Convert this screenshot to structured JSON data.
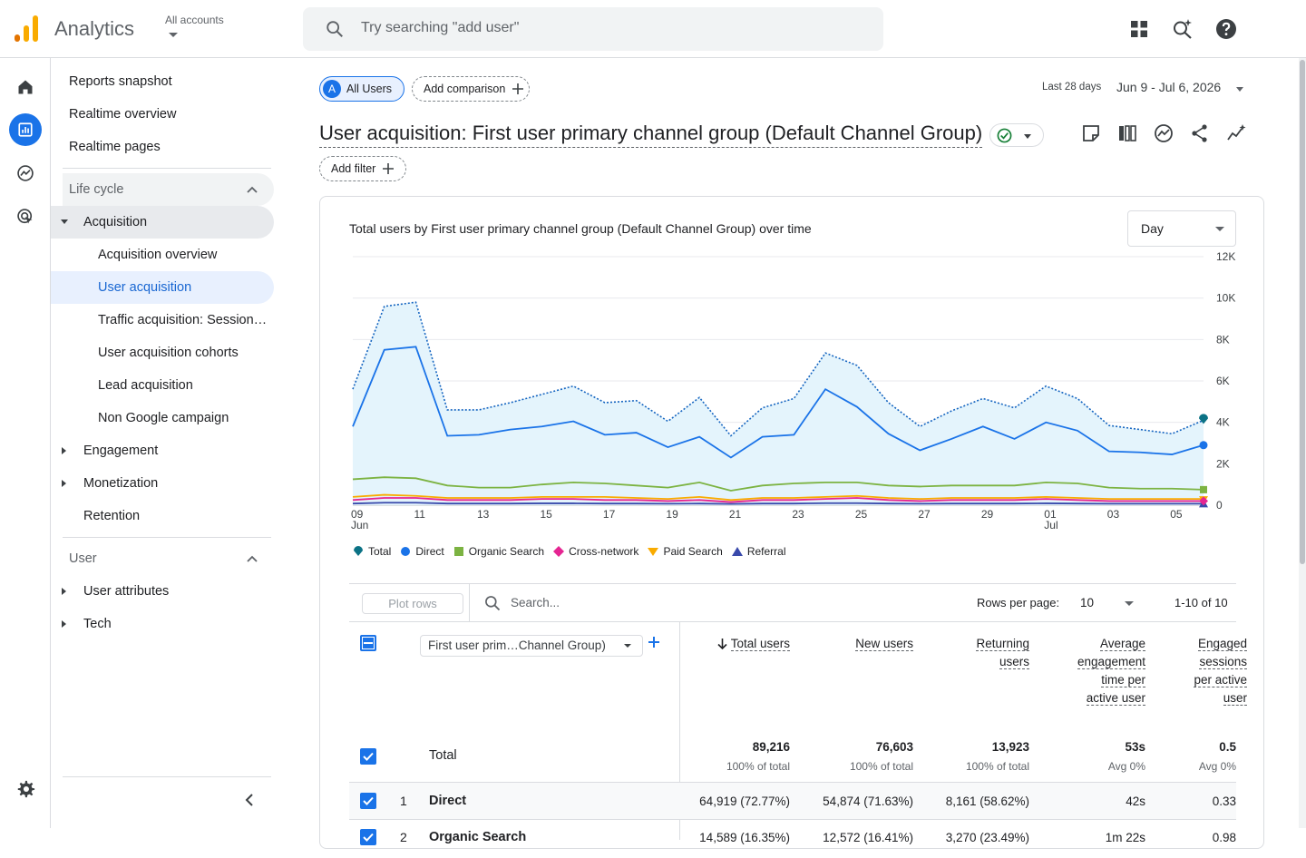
{
  "topbar": {
    "app_title": "Analytics",
    "accounts_label": "All accounts",
    "search_placeholder": "Try searching \"add user\""
  },
  "rail": [
    "home-icon",
    "reports-icon",
    "explore-icon",
    "advertising-icon"
  ],
  "sidenav": {
    "items": [
      {
        "label": "Reports snapshot"
      },
      {
        "label": "Realtime overview"
      },
      {
        "label": "Realtime pages"
      }
    ],
    "lifecycle": {
      "label": "Life cycle",
      "acquisition": {
        "label": "Acquisition",
        "children": [
          "Acquisition overview",
          "User acquisition",
          "Traffic acquisition: Session…",
          "User acquisition cohorts",
          "Lead acquisition",
          "Non Google campaign"
        ]
      },
      "engagement": "Engagement",
      "monetization": "Monetization",
      "retention": "Retention"
    },
    "user": {
      "label": "User",
      "user_attributes": "User attributes",
      "tech": "Tech"
    }
  },
  "header": {
    "all_users_chip": "All Users",
    "all_users_letter": "A",
    "add_comparison": "Add comparison",
    "date_label": "Last 28 days",
    "date_range": "Jun 9 - Jul 6, 2026",
    "report_title": "User acquisition: First user primary channel group (Default Channel Group)",
    "add_filter": "Add filter"
  },
  "card": {
    "chart_title": "Total users by First user primary channel group (Default Channel Group) over time",
    "granularity": "Day"
  },
  "chart_data": {
    "type": "line",
    "y_ticks": [
      "12K",
      "10K",
      "8K",
      "6K",
      "4K",
      "2K",
      "0"
    ],
    "x_ticks": [
      {
        "day": "09",
        "month": "Jun"
      },
      {
        "day": "11",
        "month": ""
      },
      {
        "day": "13",
        "month": ""
      },
      {
        "day": "15",
        "month": ""
      },
      {
        "day": "17",
        "month": ""
      },
      {
        "day": "19",
        "month": ""
      },
      {
        "day": "21",
        "month": ""
      },
      {
        "day": "23",
        "month": ""
      },
      {
        "day": "25",
        "month": ""
      },
      {
        "day": "27",
        "month": ""
      },
      {
        "day": "29",
        "month": ""
      },
      {
        "day": "01",
        "month": "Jul"
      },
      {
        "day": "03",
        "month": ""
      },
      {
        "day": "05",
        "month": ""
      }
    ],
    "ylim": [
      0,
      12000
    ],
    "grid": true,
    "series": [
      {
        "name": "Total",
        "color": "#12b5cb",
        "marker": "pin",
        "values": [
          5600,
          9600,
          9800,
          4600,
          4600,
          4950,
          5350,
          5750,
          4950,
          5050,
          4050,
          5200,
          3350,
          4700,
          5150,
          7350,
          6750,
          4950,
          3800,
          4550,
          5150,
          4700,
          5750,
          5150,
          3850,
          3650,
          3450,
          4100
        ]
      },
      {
        "name": "Direct",
        "color": "#1a73e8",
        "marker": "circle",
        "values": [
          3800,
          7500,
          7650,
          3350,
          3400,
          3650,
          3800,
          4050,
          3400,
          3500,
          2800,
          3300,
          2300,
          3300,
          3400,
          5600,
          4750,
          3450,
          2650,
          3200,
          3800,
          3200,
          4000,
          3600,
          2600,
          2550,
          2450,
          2900
        ]
      },
      {
        "name": "Organic Search",
        "color": "#7cb342",
        "marker": "square",
        "values": [
          1250,
          1350,
          1300,
          950,
          850,
          850,
          1000,
          1100,
          1050,
          950,
          850,
          1100,
          700,
          950,
          1050,
          1100,
          1100,
          950,
          900,
          950,
          950,
          950,
          1100,
          1050,
          850,
          800,
          800,
          750
        ]
      },
      {
        "name": "Cross-network",
        "color": "#e52592",
        "marker": "diamond",
        "values": [
          250,
          350,
          350,
          250,
          250,
          250,
          300,
          300,
          250,
          250,
          200,
          250,
          150,
          250,
          250,
          300,
          350,
          250,
          200,
          250,
          250,
          250,
          300,
          250,
          200,
          200,
          200,
          200
        ]
      },
      {
        "name": "Paid Search",
        "color": "#f9ab00",
        "marker": "triangle-down",
        "values": [
          400,
          500,
          450,
          350,
          350,
          350,
          400,
          400,
          400,
          350,
          300,
          400,
          250,
          350,
          350,
          400,
          450,
          350,
          300,
          350,
          350,
          350,
          400,
          350,
          300,
          300,
          300,
          300
        ]
      },
      {
        "name": "Referral",
        "color": "#3949ab",
        "marker": "triangle-up",
        "values": [
          80,
          120,
          120,
          80,
          80,
          80,
          90,
          90,
          80,
          80,
          70,
          80,
          60,
          80,
          80,
          100,
          100,
          80,
          70,
          80,
          80,
          80,
          90,
          80,
          70,
          70,
          70,
          70
        ]
      }
    ]
  },
  "table": {
    "plot_rows": "Plot rows",
    "search_placeholder": "Search...",
    "rows_per_page_label": "Rows per page:",
    "rows_per_page": "10",
    "range": "1-10 of 10",
    "dimension": "First user prim…Channel Group)",
    "columns": [
      {
        "lines": [
          "Total users"
        ],
        "sorted": true
      },
      {
        "lines": [
          "New users"
        ]
      },
      {
        "lines": [
          "Returning",
          "users"
        ]
      },
      {
        "lines": [
          "Average",
          "engagement",
          "time per",
          "active user"
        ]
      },
      {
        "lines": [
          "Engaged",
          "sessions",
          "per active",
          "user"
        ]
      }
    ],
    "total": {
      "label": "Total",
      "values": [
        "89,216",
        "76,603",
        "13,923",
        "53s",
        "0.5"
      ],
      "subs": [
        "100% of total",
        "100% of total",
        "100% of total",
        "Avg 0%",
        "Avg 0%"
      ]
    },
    "rows": [
      {
        "rank": "1",
        "label": "Direct",
        "values": [
          "64,919 (72.77%)",
          "54,874 (71.63%)",
          "8,161 (58.62%)",
          "42s",
          "0.33"
        ]
      },
      {
        "rank": "2",
        "label": "Organic Search",
        "values": [
          "14,589 (16.35%)",
          "12,572 (16.41%)",
          "3,270 (23.49%)",
          "1m 22s",
          "0.98"
        ]
      }
    ]
  }
}
